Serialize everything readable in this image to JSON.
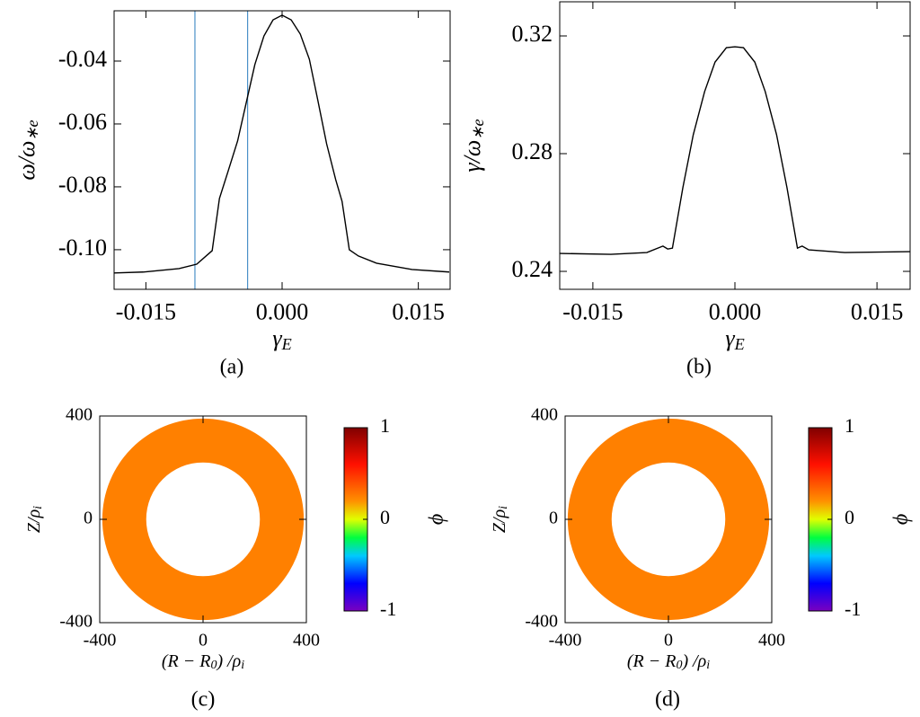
{
  "chart_data": [
    {
      "type": "line",
      "caption": "(a)",
      "xlabel": [
        "γ",
        "E"
      ],
      "ylabel": [
        "ω/ω",
        "∗e"
      ],
      "x": [
        -0.01855,
        -0.0153,
        -0.01135,
        -0.0094,
        -0.0077,
        -0.0069,
        -0.0059,
        -0.0049,
        -0.0039,
        -0.003,
        -0.002,
        -0.001,
        0,
        0.001,
        0.002,
        0.003,
        0.0039,
        0.0049,
        0.0059,
        0.0066,
        0.0074,
        0.0084,
        0.0104,
        0.0143,
        0.0184
      ],
      "values": [
        -0.1074,
        -0.1071,
        -0.106,
        -0.1046,
        -0.1003,
        -0.0837,
        -0.0746,
        -0.0654,
        -0.0526,
        -0.0411,
        -0.032,
        -0.0269,
        -0.0254,
        -0.0269,
        -0.0314,
        -0.0394,
        -0.052,
        -0.0663,
        -0.0777,
        -0.0846,
        -0.1,
        -0.102,
        -0.1043,
        -0.1063,
        -0.1071
      ],
      "color": "#000000",
      "vlines": [
        -0.0096,
        -0.0038
      ],
      "vline_color": "#4a90c8",
      "xlim": [
        -0.0185,
        0.0185
      ],
      "xticks": [
        -0.015,
        {
          "value": 0,
          "label": "0.000"
        },
        0.015
      ],
      "ylim": [
        -0.1126,
        -0.024
      ],
      "yticks": [
        {
          "value": -0.1,
          "label": "-0.10"
        },
        -0.08,
        -0.06,
        -0.04
      ]
    },
    {
      "type": "line",
      "caption": "(b)",
      "xlabel": [
        "γ",
        "E"
      ],
      "ylabel": [
        "γ/ω",
        "∗e"
      ],
      "x": [
        -0.0185,
        -0.0131,
        -0.0093,
        -0.0076,
        -0.0071,
        -0.0066,
        -0.0055,
        -0.0044,
        -0.0032,
        -0.0021,
        -0.0009,
        0,
        0.0009,
        0.0021,
        0.0032,
        0.0044,
        0.0055,
        0.0066,
        0.0071,
        0.0078,
        0.0116,
        0.0185
      ],
      "values": [
        0.2461,
        0.2458,
        0.2464,
        0.2486,
        0.2476,
        0.2479,
        0.2684,
        0.2864,
        0.3011,
        0.3111,
        0.316,
        0.3163,
        0.316,
        0.3111,
        0.3011,
        0.2864,
        0.2684,
        0.2479,
        0.2486,
        0.2473,
        0.2464,
        0.2467
      ],
      "color": "#000000",
      "xlim": [
        -0.0185,
        0.0185
      ],
      "xticks": [
        -0.015,
        {
          "value": 0,
          "label": "0.000"
        },
        0.015
      ],
      "ylim": [
        0.2339,
        0.3316
      ],
      "yticks": [
        0.24,
        0.28,
        0.32
      ]
    },
    {
      "type": "contour",
      "caption": "(c)",
      "xlabel": [
        "(R − R",
        "0",
        ") /ρ",
        "i"
      ],
      "ylabel": [
        "Z/ρ",
        "i"
      ],
      "r_outer": 390,
      "r_inner": 220,
      "color": "#ff8000",
      "xlim": [
        -400,
        400
      ],
      "xticks": [
        -400,
        0,
        400
      ],
      "ylim": [
        -400,
        400
      ],
      "yticks": [
        -400,
        0,
        400
      ],
      "colorbar": {
        "label": "ϕ",
        "lim": [
          -1,
          1
        ],
        "ticks": [
          -1,
          0,
          1
        ]
      }
    },
    {
      "type": "contour",
      "caption": "(d)",
      "xlabel": [
        "(R − R",
        "0",
        ") /ρ",
        "i"
      ],
      "ylabel": [
        "Z/ρ",
        "i"
      ],
      "r_outer": 390,
      "r_inner": 220,
      "color": "#ff8000",
      "xlim": [
        -400,
        400
      ],
      "xticks": [
        -400,
        0,
        400
      ],
      "ylim": [
        -400,
        400
      ],
      "yticks": [
        -400,
        0,
        400
      ],
      "colorbar": {
        "label": "ϕ",
        "lim": [
          -1,
          1
        ],
        "ticks": [
          -1,
          0,
          1
        ]
      }
    }
  ]
}
